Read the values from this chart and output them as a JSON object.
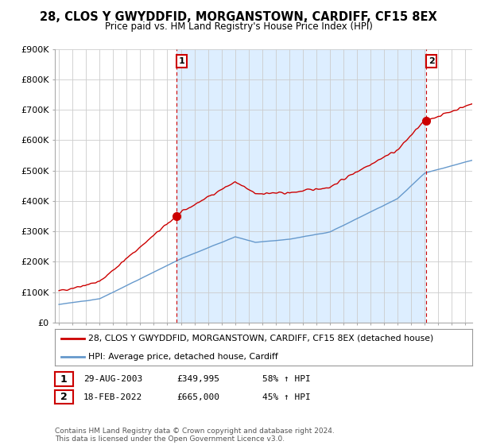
{
  "title": "28, CLOS Y GWYDDFID, MORGANSTOWN, CARDIFF, CF15 8EX",
  "subtitle": "Price paid vs. HM Land Registry's House Price Index (HPI)",
  "ylim": [
    0,
    900000
  ],
  "yticks": [
    0,
    100000,
    200000,
    300000,
    400000,
    500000,
    600000,
    700000,
    800000,
    900000
  ],
  "ytick_labels": [
    "£0",
    "£100K",
    "£200K",
    "£300K",
    "£400K",
    "£500K",
    "£600K",
    "£700K",
    "£800K",
    "£900K"
  ],
  "sale1_date": 2003.66,
  "sale1_price": 349995,
  "sale1_label": "1",
  "sale2_date": 2022.12,
  "sale2_price": 665000,
  "sale2_label": "2",
  "legend_line1": "28, CLOS Y GWYDDFID, MORGANSTOWN, CARDIFF, CF15 8EX (detached house)",
  "legend_line2": "HPI: Average price, detached house, Cardiff",
  "table_row1": [
    "1",
    "29-AUG-2003",
    "£349,995",
    "58% ↑ HPI"
  ],
  "table_row2": [
    "2",
    "18-FEB-2022",
    "£665,000",
    "45% ↑ HPI"
  ],
  "footnote": "Contains HM Land Registry data © Crown copyright and database right 2024.\nThis data is licensed under the Open Government Licence v3.0.",
  "red_color": "#cc0000",
  "blue_color": "#6699cc",
  "highlight_color": "#ddeeff",
  "background_color": "#ffffff",
  "grid_color": "#cccccc",
  "vline_color": "#cc0000",
  "xlim_left": 1995.0,
  "xlim_right": 2025.5
}
